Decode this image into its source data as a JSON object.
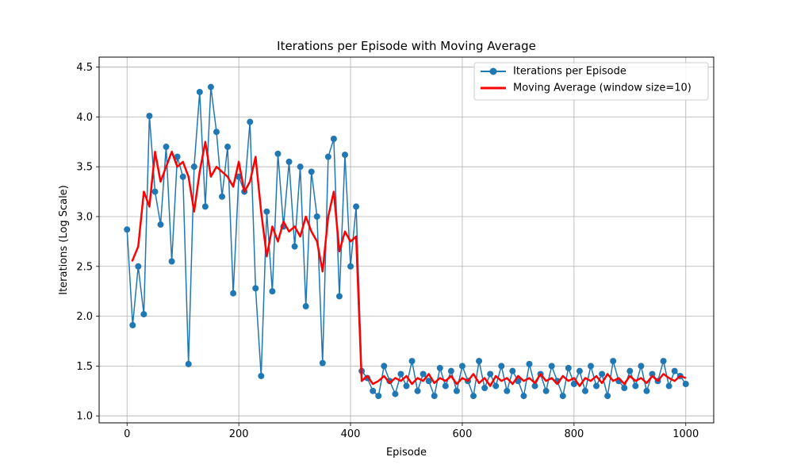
{
  "chart_data": {
    "type": "line",
    "title": "Iterations per Episode with Moving Average",
    "xlabel": "Episode",
    "ylabel": "Iterations (Log Scale)",
    "xlim": [
      -50,
      1050
    ],
    "ylim": [
      0.93,
      4.6
    ],
    "xticks": [
      0,
      200,
      400,
      600,
      800,
      1000
    ],
    "yticks": [
      1.0,
      1.5,
      2.0,
      2.5,
      3.0,
      3.5,
      4.0,
      4.5
    ],
    "ytick_labels": [
      "1.0",
      "1.5",
      "2.0",
      "2.5",
      "3.0",
      "3.5",
      "4.0",
      "4.5"
    ],
    "grid": true,
    "legend_position": "top-right",
    "series": [
      {
        "name": "Iterations per Episode",
        "color": "#1f77b4",
        "style": "line-with-circle-markers",
        "x": [
          0,
          10,
          20,
          30,
          40,
          50,
          60,
          70,
          80,
          90,
          100,
          110,
          120,
          130,
          140,
          150,
          160,
          170,
          180,
          190,
          200,
          210,
          220,
          230,
          240,
          250,
          260,
          270,
          280,
          290,
          300,
          310,
          320,
          330,
          340,
          350,
          360,
          370,
          380,
          390,
          400,
          410,
          420,
          430,
          440,
          450,
          460,
          470,
          480,
          490,
          500,
          510,
          520,
          530,
          540,
          550,
          560,
          570,
          580,
          590,
          600,
          610,
          620,
          630,
          640,
          650,
          660,
          670,
          680,
          690,
          700,
          710,
          720,
          730,
          740,
          750,
          760,
          770,
          780,
          790,
          800,
          810,
          820,
          830,
          840,
          850,
          860,
          870,
          880,
          890,
          900,
          910,
          920,
          930,
          940,
          950,
          960,
          970,
          980,
          990,
          1000
        ],
        "values": [
          2.87,
          1.91,
          2.5,
          2.02,
          4.01,
          3.25,
          2.92,
          3.7,
          2.55,
          3.6,
          3.4,
          1.52,
          3.5,
          4.25,
          3.1,
          4.3,
          3.85,
          3.2,
          3.7,
          2.23,
          3.4,
          3.25,
          3.95,
          2.28,
          1.4,
          3.05,
          2.25,
          3.63,
          2.9,
          3.55,
          2.7,
          3.5,
          2.1,
          3.45,
          3.0,
          1.53,
          3.6,
          3.78,
          2.2,
          3.62,
          2.5,
          3.1,
          1.45,
          1.38,
          1.25,
          1.2,
          1.5,
          1.35,
          1.22,
          1.42,
          1.3,
          1.55,
          1.25,
          1.42,
          1.35,
          1.2,
          1.48,
          1.3,
          1.45,
          1.25,
          1.5,
          1.35,
          1.2,
          1.55,
          1.28,
          1.42,
          1.3,
          1.5,
          1.25,
          1.45,
          1.35,
          1.2,
          1.52,
          1.3,
          1.42,
          1.25,
          1.5,
          1.35,
          1.2,
          1.48,
          1.32,
          1.45,
          1.25,
          1.5,
          1.3,
          1.42,
          1.2,
          1.55,
          1.35,
          1.28,
          1.45,
          1.3,
          1.5,
          1.25,
          1.42,
          1.35,
          1.55,
          1.3,
          1.45,
          1.4,
          1.32
        ]
      },
      {
        "name": "Moving Average (window size=10)",
        "color": "#ff0000",
        "style": "line",
        "x": [
          9,
          20,
          30,
          40,
          50,
          60,
          70,
          80,
          90,
          100,
          110,
          120,
          130,
          140,
          150,
          160,
          170,
          180,
          190,
          200,
          210,
          220,
          230,
          240,
          250,
          260,
          270,
          280,
          290,
          300,
          310,
          320,
          330,
          340,
          350,
          360,
          370,
          380,
          390,
          400,
          410,
          420,
          430,
          440,
          450,
          460,
          470,
          480,
          490,
          500,
          510,
          520,
          530,
          540,
          550,
          560,
          570,
          580,
          590,
          600,
          610,
          620,
          630,
          640,
          650,
          660,
          670,
          680,
          690,
          700,
          710,
          720,
          730,
          740,
          750,
          760,
          770,
          780,
          790,
          800,
          810,
          820,
          830,
          840,
          850,
          860,
          870,
          880,
          890,
          900,
          910,
          920,
          930,
          940,
          950,
          960,
          970,
          980,
          990,
          1000
        ],
        "values": [
          2.55,
          2.7,
          3.25,
          3.1,
          3.65,
          3.35,
          3.5,
          3.65,
          3.5,
          3.55,
          3.4,
          3.05,
          3.45,
          3.75,
          3.4,
          3.5,
          3.45,
          3.4,
          3.3,
          3.55,
          3.25,
          3.35,
          3.6,
          3.05,
          2.6,
          2.9,
          2.75,
          2.95,
          2.85,
          2.9,
          2.8,
          3.0,
          2.85,
          2.75,
          2.45,
          3.0,
          3.25,
          2.65,
          2.85,
          2.75,
          2.8,
          1.35,
          1.4,
          1.32,
          1.35,
          1.4,
          1.33,
          1.38,
          1.35,
          1.4,
          1.32,
          1.38,
          1.35,
          1.42,
          1.33,
          1.38,
          1.35,
          1.4,
          1.32,
          1.38,
          1.35,
          1.42,
          1.33,
          1.38,
          1.3,
          1.4,
          1.35,
          1.38,
          1.32,
          1.4,
          1.35,
          1.38,
          1.33,
          1.42,
          1.35,
          1.38,
          1.32,
          1.4,
          1.35,
          1.38,
          1.3,
          1.38,
          1.35,
          1.4,
          1.33,
          1.42,
          1.35,
          1.38,
          1.32,
          1.4,
          1.35,
          1.38,
          1.33,
          1.4,
          1.35,
          1.42,
          1.38,
          1.35,
          1.4,
          1.38
        ]
      }
    ]
  }
}
